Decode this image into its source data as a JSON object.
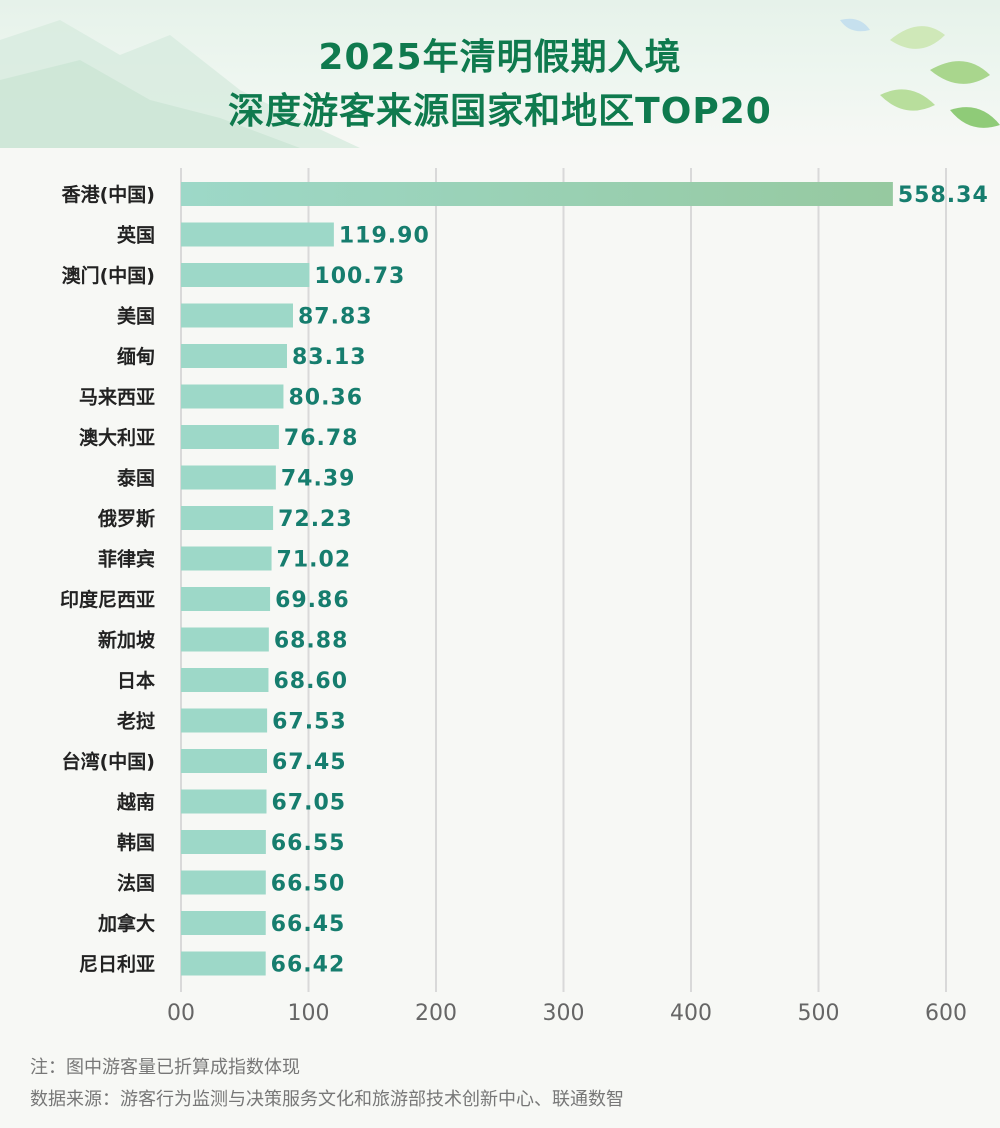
{
  "title": {
    "line1": "2025年清明假期入境",
    "line2": "深度游客来源国家和地区TOP20"
  },
  "colors": {
    "title": "#0f7a4e",
    "bar": "#9dd8c8",
    "bar_top_end": "#96c9a0",
    "value_label": "#167d6e",
    "grid": "#d9d9d9"
  },
  "chart_data": {
    "type": "bar",
    "orientation": "horizontal",
    "categories": [
      "香港(中国)",
      "英国",
      "澳门(中国)",
      "美国",
      "缅甸",
      "马来西亚",
      "澳大利亚",
      "泰国",
      "俄罗斯",
      "菲律宾",
      "印度尼西亚",
      "新加坡",
      "日本",
      "老挝",
      "台湾(中国)",
      "越南",
      "韩国",
      "法国",
      "加拿大",
      "尼日利亚"
    ],
    "values": [
      558.34,
      119.9,
      100.73,
      87.83,
      83.13,
      80.36,
      76.78,
      74.39,
      72.23,
      71.02,
      69.86,
      68.88,
      68.6,
      67.53,
      67.45,
      67.05,
      66.55,
      66.5,
      66.45,
      66.42
    ],
    "value_labels": [
      "558.34",
      "119.90",
      "100.73",
      "87.83",
      "83.13",
      "80.36",
      "76.78",
      "74.39",
      "72.23",
      "71.02",
      "69.86",
      "68.88",
      "68.60",
      "67.53",
      "67.45",
      "67.05",
      "66.55",
      "66.50",
      "66.45",
      "66.42"
    ],
    "xlim": [
      0,
      600
    ],
    "xticks": [
      0,
      100,
      200,
      300,
      400,
      500,
      600
    ],
    "xtick_labels": [
      "00",
      "100",
      "200",
      "300",
      "400",
      "500",
      "600"
    ],
    "grid": "vertical",
    "title": "2025年清明假期入境深度游客来源国家和地区TOP20",
    "xlabel": "",
    "ylabel": ""
  },
  "notes": {
    "note": "注：图中游客量已折算成指数体现",
    "source": "数据来源：游客行为监测与决策服务文化和旅游部技术创新中心、联通数智"
  }
}
